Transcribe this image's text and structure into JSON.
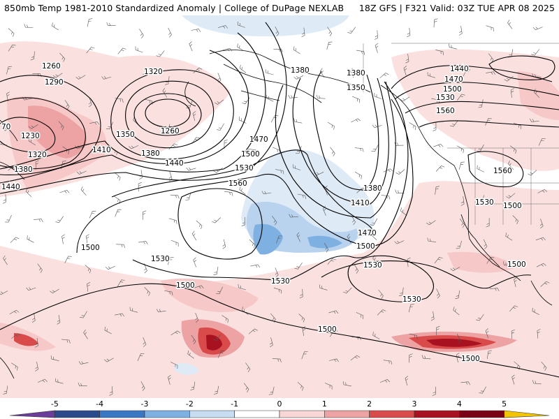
{
  "header": {
    "title_left": "850mb Temp 1981-2010 Standardized Anomaly | College of DuPage NEXLAB",
    "title_right": "18Z GFS | F321 Valid: 03Z TUE APR 08 2025"
  },
  "contour_labels": [
    {
      "text": "1260"
    },
    {
      "text": "1290"
    },
    {
      "text": "1320"
    },
    {
      "text": "1260"
    },
    {
      "text": "1350"
    },
    {
      "text": "1410"
    },
    {
      "text": "1380"
    },
    {
      "text": "1440"
    },
    {
      "text": "1230"
    },
    {
      "text": "1320"
    },
    {
      "text": "1380"
    },
    {
      "text": "1440"
    },
    {
      "text": "70"
    },
    {
      "text": "1380"
    },
    {
      "text": "1380"
    },
    {
      "text": "1350"
    },
    {
      "text": "1440"
    },
    {
      "text": "1470"
    },
    {
      "text": "1500"
    },
    {
      "text": "1530"
    },
    {
      "text": "1560"
    },
    {
      "text": "1470"
    },
    {
      "text": "1500"
    },
    {
      "text": "1530"
    },
    {
      "text": "1560"
    },
    {
      "text": "1380"
    },
    {
      "text": "1410"
    },
    {
      "text": "1470"
    },
    {
      "text": "1500"
    },
    {
      "text": "1500"
    },
    {
      "text": "1530"
    },
    {
      "text": "1530"
    },
    {
      "text": "1500"
    },
    {
      "text": "1530"
    },
    {
      "text": "1530"
    },
    {
      "text": "1500"
    },
    {
      "text": "1560"
    },
    {
      "text": "1530"
    },
    {
      "text": "1500"
    },
    {
      "text": "1500"
    },
    {
      "text": "1500"
    }
  ],
  "colorbar": {
    "ticks": [
      "-5",
      "-4",
      "-3",
      "-2",
      "-1",
      "0",
      "1",
      "2",
      "3",
      "4",
      "5"
    ],
    "colors": [
      "#6a3d9a",
      "#2b4a8c",
      "#3a78c4",
      "#7fb0e2",
      "#c8dcf2",
      "#ffffff",
      "#f8d6d6",
      "#eda3a3",
      "#d94a4a",
      "#a8111f",
      "#7a0016",
      "#f3c400"
    ]
  }
}
